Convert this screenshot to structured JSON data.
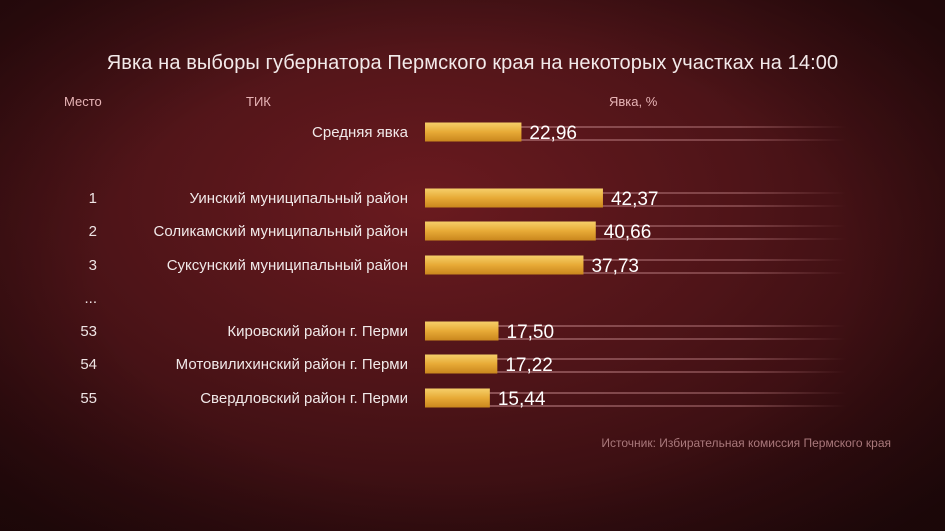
{
  "title": "Явка на выборы губернатора Пермского края на некоторых участках на 14:00",
  "headers": {
    "rank": "Место",
    "tik": "ТИК",
    "turnout": "Явка, %"
  },
  "source": "Источник: Избирательная комиссия Пермского края",
  "colors": {
    "bar": "#e3a632",
    "bar_light": "#f3c55a",
    "track": "#b77c80"
  },
  "chart_data": {
    "type": "bar",
    "orientation": "horizontal",
    "ylabel": "Явка, %",
    "rows": [
      {
        "rank": "",
        "name": "Средняя явка",
        "value": 22.96,
        "value_label": "22,96"
      },
      {
        "rank": "1",
        "name": "Уинский муниципальный район",
        "value": 42.37,
        "value_label": "42,37"
      },
      {
        "rank": "2",
        "name": "Соликамский муниципальный район",
        "value": 40.66,
        "value_label": "40,66"
      },
      {
        "rank": "3",
        "name": "Суксунский муниципальный район",
        "value": 37.73,
        "value_label": "37,73"
      },
      {
        "rank": "...",
        "name": "",
        "value": null,
        "value_label": ""
      },
      {
        "rank": "53",
        "name": "Кировский район г. Перми",
        "value": 17.5,
        "value_label": "17,50"
      },
      {
        "rank": "54",
        "name": "Мотовилихинский район г. Перми",
        "value": 17.22,
        "value_label": "17,22"
      },
      {
        "rank": "55",
        "name": "Свердловский район г. Перми",
        "value": 15.44,
        "value_label": "15,44"
      }
    ]
  }
}
